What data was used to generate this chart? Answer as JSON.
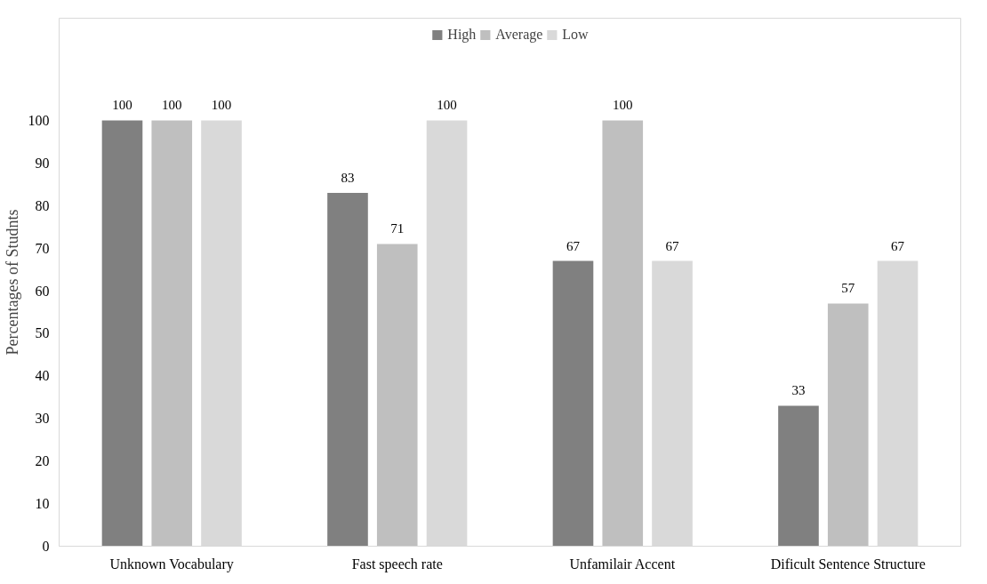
{
  "chart_data": {
    "type": "bar",
    "ylabel": "Percentages of Studnts",
    "categories": [
      "Unknown Vocabulary",
      "Fast speech rate",
      "Unfamilair Accent",
      "Dificult Sentence Structure"
    ],
    "series": [
      {
        "name": "High",
        "color": "#808080",
        "values": [
          100,
          83,
          67,
          33
        ]
      },
      {
        "name": "Average",
        "color": "#bfbfbf",
        "values": [
          100,
          71,
          100,
          57
        ]
      },
      {
        "name": "Low",
        "color": "#d9d9d9",
        "values": [
          100,
          100,
          67,
          67
        ]
      }
    ],
    "ylim": [
      0,
      100
    ],
    "yticks": [
      0,
      10,
      20,
      30,
      40,
      50,
      60,
      70,
      80,
      90,
      100
    ],
    "data_labels": true,
    "legend": "top",
    "grid": false
  }
}
